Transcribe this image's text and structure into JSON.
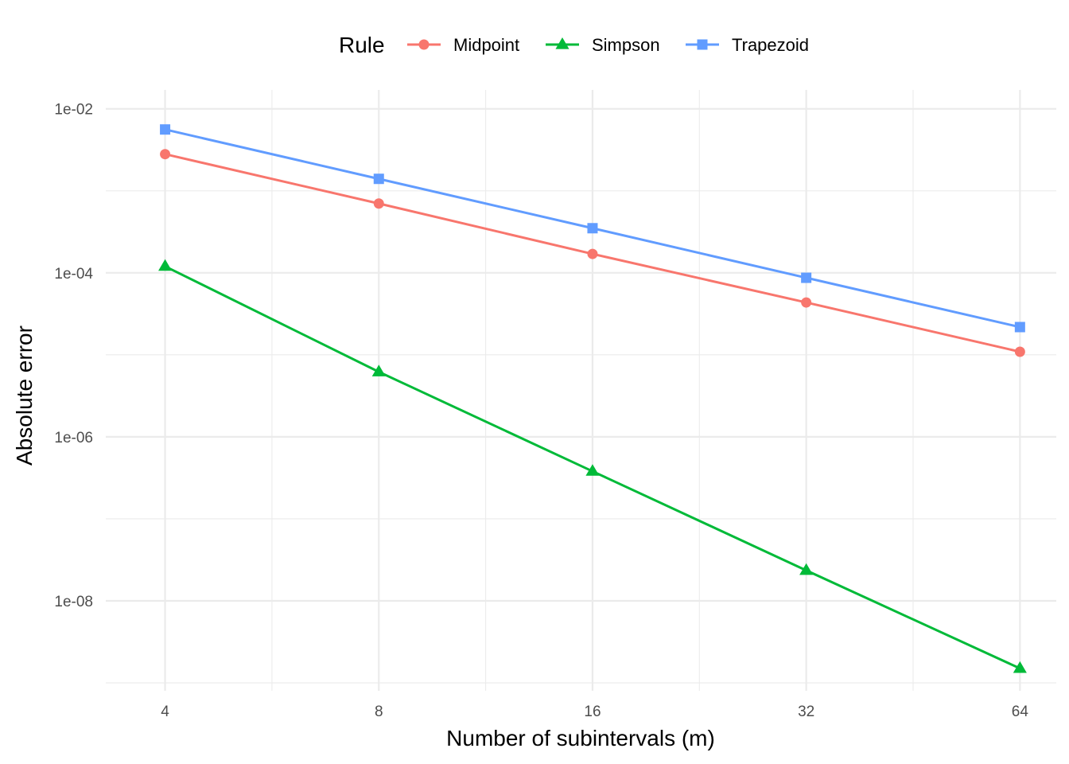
{
  "chart_data": {
    "type": "line",
    "xlabel": "Number of subintervals (m)",
    "ylabel": "Absolute error",
    "x_scale": "log2",
    "y_scale": "log10",
    "x": [
      4,
      8,
      16,
      32,
      64
    ],
    "x_ticks": [
      4,
      8,
      16,
      32,
      64
    ],
    "x_tick_labels": [
      "4",
      "8",
      "16",
      "32",
      "64"
    ],
    "y_ticks": [
      1e-08,
      1e-06,
      0.0001,
      0.01
    ],
    "y_tick_labels": [
      "1e-08",
      "1e-06",
      "1e-04",
      "1e-02"
    ],
    "xlim": [
      3.3,
      72
    ],
    "ylim": [
      8e-10,
      0.017
    ],
    "grid": true,
    "legend": {
      "title": "Rule",
      "position": "top"
    },
    "series": [
      {
        "name": "Midpoint",
        "color": "#F8766D",
        "marker": "circle",
        "values": [
          0.0028,
          0.0007,
          0.00017,
          4.35e-05,
          1.09e-05
        ]
      },
      {
        "name": "Simpson",
        "color": "#00BA38",
        "marker": "triangle",
        "values": [
          0.00012,
          6.2e-06,
          3.8e-07,
          2.35e-08,
          1.5e-09
        ]
      },
      {
        "name": "Trapezoid",
        "color": "#619CFF",
        "marker": "square",
        "values": [
          0.0056,
          0.0014,
          0.00035,
          8.7e-05,
          2.18e-05
        ]
      }
    ]
  }
}
